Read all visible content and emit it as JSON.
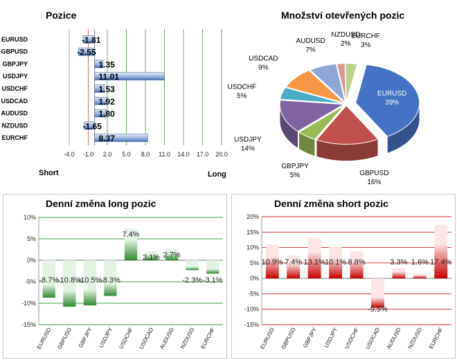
{
  "chart_data": [
    {
      "id": "positions",
      "type": "bar",
      "orientation": "horizontal",
      "title": "Pozice",
      "categories": [
        "EURUSD",
        "GBPUSD",
        "GBPJPY",
        "USDJPY",
        "USDCHF",
        "USDCAD",
        "AUDUSD",
        "NZDUSD",
        "EURCHF"
      ],
      "values": [
        -1.81,
        -2.55,
        1.35,
        11.01,
        1.53,
        1.92,
        1.8,
        -1.65,
        8.37
      ],
      "value_labels": [
        "-1.81",
        "-2.55",
        "1.35",
        "11.01",
        "1.53",
        "1.92",
        "1.80",
        "-1.65",
        "8.37"
      ],
      "xlim": [
        -4.0,
        20.0
      ],
      "xticks": [
        -4.0,
        -1.0,
        2.0,
        5.0,
        8.0,
        11.0,
        14.0,
        17.0,
        20.0
      ],
      "xtick_labels": [
        "-4.0",
        "-1.0",
        "2.0",
        "5.0",
        "8.0",
        "11.0",
        "14.0",
        "17.0",
        "20.0"
      ],
      "left_label": "Short",
      "right_label": "Long",
      "grid": true,
      "colors": {
        "bar": "#4a72b8",
        "bar_light": "#dfe7f3",
        "red_line": "#e06666",
        "green_line": "#6aaa64"
      }
    },
    {
      "id": "open-positions",
      "type": "pie",
      "title": "Množství otevřených pozic",
      "categories": [
        "EURUSD",
        "GBPUSD",
        "GBPJPY",
        "USDJPY",
        "USDCHF",
        "USDCAD",
        "AUDUSD",
        "NZDUSD",
        "EURCHF"
      ],
      "values": [
        39,
        16,
        5,
        14,
        5,
        9,
        7,
        2,
        3
      ],
      "value_labels": [
        "39%",
        "16%",
        "5%",
        "14%",
        "5%",
        "9%",
        "7%",
        "2%",
        "3%"
      ],
      "colors": [
        "#4472c4",
        "#c0504d",
        "#9bbb59",
        "#8064a2",
        "#4bacc6",
        "#f79646",
        "#8fa7d4",
        "#d99694",
        "#bcd18a"
      ]
    },
    {
      "id": "daily-long",
      "type": "bar",
      "title": "Denní změna long pozic",
      "categories": [
        "EURUSD",
        "GBPUSD",
        "GBPJPY",
        "USDJPY",
        "USDCHF",
        "USDCAD",
        "AUDUSD",
        "NZDUSD",
        "EURCHF"
      ],
      "values": [
        -8.7,
        -10.8,
        -10.5,
        -8.3,
        7.4,
        2.1,
        2.7,
        -2.3,
        -3.1
      ],
      "value_labels": [
        "-8.7%",
        "-10.8%",
        "-10.5%",
        "-8.3%",
        "7.4%",
        "2.1%",
        "2.7%",
        "-2.3%",
        "-3.1%"
      ],
      "ylim": [
        -15,
        10
      ],
      "yticks": [
        -15,
        -10,
        -5,
        0,
        5,
        10
      ],
      "ytick_labels": [
        "-15%",
        "-10%",
        "-5%",
        "0%",
        "5%",
        "10%"
      ],
      "grid": true,
      "colors": {
        "bar": "#2f8a2f",
        "bar_light": "#e4f2e4",
        "grid": "#3a9a3a"
      }
    },
    {
      "id": "daily-short",
      "type": "bar",
      "title": "Denní změna short pozic",
      "categories": [
        "EURUSD",
        "GBPUSD",
        "GBPJPY",
        "USDJPY",
        "USDCHF",
        "USDCAD",
        "AUDUSD",
        "NZDUSD",
        "EURCHF"
      ],
      "values": [
        10.9,
        7.4,
        13.1,
        10.1,
        8.8,
        -9.5,
        3.3,
        1.6,
        17.4
      ],
      "value_labels": [
        "10.9%",
        "7.4%",
        "13.1%",
        "10.1%",
        "8.8%",
        "-9.5%",
        "3.3%",
        "1.6%",
        "17.4%"
      ],
      "ylim": [
        -15,
        20
      ],
      "yticks": [
        -15,
        -10,
        -5,
        0,
        5,
        10,
        15,
        20
      ],
      "ytick_labels": [
        "-15%",
        "-10%",
        "-5%",
        "0%",
        "5%",
        "10%",
        "15%",
        "20%"
      ],
      "grid": true,
      "colors": {
        "bar": "#c80000",
        "bar_light": "#fbe5e5",
        "grid": "#cc2222"
      }
    }
  ]
}
